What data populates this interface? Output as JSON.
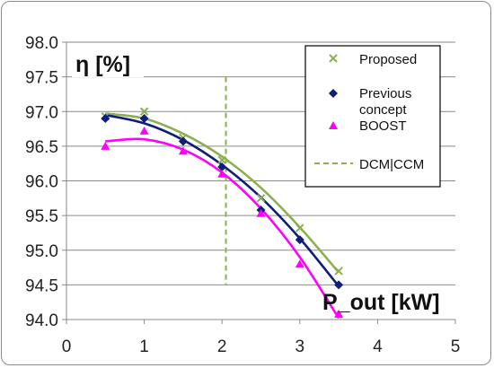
{
  "chart_data": {
    "type": "scatter",
    "ylabel": "η [%]",
    "xlabel": "P_out [kW]",
    "xlim": [
      0,
      5
    ],
    "ylim": [
      94.0,
      98.0
    ],
    "x_ticks": [
      "0",
      "1",
      "2",
      "3",
      "4",
      "5"
    ],
    "y_ticks": [
      "94.0",
      "94.5",
      "95.0",
      "95.5",
      "96.0",
      "96.5",
      "97.0",
      "97.5",
      "98.0"
    ],
    "grid": "horizontal",
    "legend_position": "top-right",
    "series": [
      {
        "name": "Proposed",
        "marker": "x",
        "color": "#8db04e",
        "x": [
          0.5,
          1.0,
          1.5,
          2.0,
          2.5,
          3.0,
          3.5
        ],
        "y": [
          96.93,
          97.0,
          96.62,
          96.3,
          95.75,
          95.32,
          94.7
        ],
        "trend": [
          [
            0.5,
            96.97
          ],
          [
            1.0,
            96.9
          ],
          [
            1.5,
            96.68
          ],
          [
            2.0,
            96.35
          ],
          [
            2.5,
            95.9
          ],
          [
            3.0,
            95.33
          ],
          [
            3.5,
            94.68
          ]
        ]
      },
      {
        "name": "Previous concept",
        "marker": "diamond",
        "color": "#0d1f78",
        "x": [
          0.5,
          1.0,
          1.5,
          2.0,
          2.5,
          3.0,
          3.5
        ],
        "y": [
          96.9,
          96.9,
          96.57,
          96.2,
          95.58,
          95.15,
          94.5
        ],
        "trend": [
          [
            0.5,
            96.95
          ],
          [
            1.0,
            96.83
          ],
          [
            1.5,
            96.59
          ],
          [
            2.0,
            96.23
          ],
          [
            2.5,
            95.76
          ],
          [
            3.0,
            95.17
          ],
          [
            3.5,
            94.48
          ]
        ]
      },
      {
        "name": "BOOST",
        "marker": "triangle",
        "color": "#ff00ff",
        "x": [
          0.5,
          1.0,
          1.5,
          2.0,
          2.5,
          3.0,
          3.5
        ],
        "y": [
          96.5,
          96.72,
          96.43,
          96.1,
          95.53,
          94.8,
          94.08
        ],
        "trend": [
          [
            0.5,
            96.57
          ],
          [
            1.0,
            96.6
          ],
          [
            1.5,
            96.45
          ],
          [
            2.0,
            96.12
          ],
          [
            2.5,
            95.6
          ],
          [
            3.0,
            94.9
          ],
          [
            3.5,
            94.02
          ]
        ]
      }
    ],
    "reference_line": {
      "name": "DCM|CCM",
      "style": "dashed",
      "color": "#8db04e",
      "x": 2.05,
      "y_range": [
        94.5,
        97.5
      ]
    }
  }
}
